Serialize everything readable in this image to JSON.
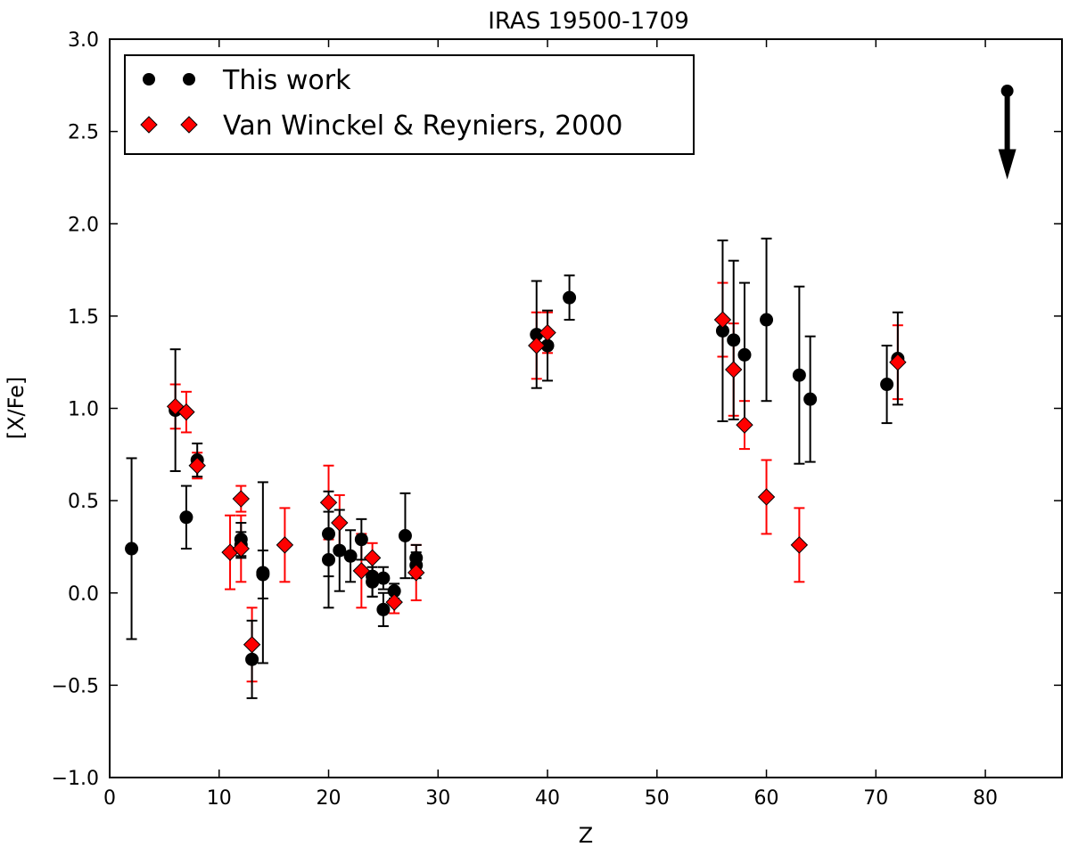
{
  "chart_data": {
    "type": "scatter",
    "title": "IRAS 19500-1709",
    "xlabel": "Z",
    "ylabel": "[X/Fe]",
    "xlim": [
      0,
      87
    ],
    "ylim": [
      -1.0,
      3.0
    ],
    "xticks": [
      0,
      10,
      20,
      30,
      40,
      50,
      60,
      70,
      80
    ],
    "xtick_labels": [
      "0",
      "10",
      "20",
      "30",
      "40",
      "50",
      "60",
      "70",
      "80"
    ],
    "yticks": [
      -1.0,
      -0.5,
      0.0,
      0.5,
      1.0,
      1.5,
      2.0,
      2.5,
      3.0
    ],
    "ytick_labels": [
      "−1.0",
      "−0.5",
      "0.0",
      "0.5",
      "1.0",
      "1.5",
      "2.0",
      "2.5",
      "3.0"
    ],
    "grid": false,
    "legend_position": "top-left",
    "series": [
      {
        "name": "This work",
        "marker": "circle",
        "color": "#000000",
        "points": [
          {
            "x": 2,
            "y": 0.24,
            "err": 0.49
          },
          {
            "x": 6,
            "y": 0.99,
            "err": 0.33
          },
          {
            "x": 7,
            "y": 0.41,
            "err": 0.17
          },
          {
            "x": 8,
            "y": 0.72,
            "err": 0.09
          },
          {
            "x": 12,
            "y": 0.29,
            "err": 0.09
          },
          {
            "x": 12,
            "y": 0.26,
            "err": 0.07
          },
          {
            "x": 13,
            "y": -0.36,
            "err": 0.21
          },
          {
            "x": 14,
            "y": 0.11,
            "err": 0.49
          },
          {
            "x": 14,
            "y": 0.1,
            "err": 0.13
          },
          {
            "x": 20,
            "y": 0.32,
            "err": 0.23
          },
          {
            "x": 20,
            "y": 0.18,
            "err": 0.26
          },
          {
            "x": 21,
            "y": 0.23,
            "err": 0.22
          },
          {
            "x": 22,
            "y": 0.2,
            "err": 0.14
          },
          {
            "x": 23,
            "y": 0.29,
            "err": 0.11
          },
          {
            "x": 24,
            "y": 0.09,
            "err": 0.11
          },
          {
            "x": 24,
            "y": 0.06,
            "err": 0.08
          },
          {
            "x": 25,
            "y": 0.08,
            "err": 0.06
          },
          {
            "x": 25,
            "y": -0.09,
            "err": 0.09
          },
          {
            "x": 26,
            "y": 0.01,
            "err": 0.04
          },
          {
            "x": 27,
            "y": 0.31,
            "err": 0.23
          },
          {
            "x": 28,
            "y": 0.19,
            "err": 0.07
          },
          {
            "x": 28,
            "y": 0.15,
            "err": 0.07
          },
          {
            "x": 39,
            "y": 1.4,
            "err": 0.29
          },
          {
            "x": 40,
            "y": 1.34,
            "err": 0.19
          },
          {
            "x": 42,
            "y": 1.6,
            "err": 0.12
          },
          {
            "x": 56,
            "y": 1.42,
            "err": 0.49
          },
          {
            "x": 57,
            "y": 1.37,
            "err": 0.43
          },
          {
            "x": 58,
            "y": 1.29,
            "err": 0.39
          },
          {
            "x": 60,
            "y": 1.48,
            "err": 0.44
          },
          {
            "x": 63,
            "y": 1.18,
            "err": 0.48
          },
          {
            "x": 64,
            "y": 1.05,
            "err": 0.34
          },
          {
            "x": 71,
            "y": 1.13,
            "err": 0.21
          },
          {
            "x": 72,
            "y": 1.27,
            "err": 0.25
          }
        ],
        "upper_limit": {
          "x": 82,
          "y": 2.72,
          "y_end": 2.24
        }
      },
      {
        "name": "Van Winckel & Reyniers, 2000",
        "marker": "diamond",
        "color": "#ff0000",
        "points": [
          {
            "x": 6,
            "y": 1.01,
            "err": 0.12
          },
          {
            "x": 7,
            "y": 0.98,
            "err": 0.11
          },
          {
            "x": 8,
            "y": 0.69,
            "err": 0.07
          },
          {
            "x": 11,
            "y": 0.22,
            "err": 0.2
          },
          {
            "x": 12,
            "y": 0.51,
            "err": 0.07
          },
          {
            "x": 12,
            "y": 0.24,
            "err": 0.18
          },
          {
            "x": 13,
            "y": -0.28,
            "err": 0.2
          },
          {
            "x": 16,
            "y": 0.26,
            "err": 0.2
          },
          {
            "x": 20,
            "y": 0.49,
            "err": 0.2
          },
          {
            "x": 21,
            "y": 0.38,
            "err": 0.15
          },
          {
            "x": 23,
            "y": 0.12,
            "err": 0.2
          },
          {
            "x": 24,
            "y": 0.19,
            "err": 0.08
          },
          {
            "x": 26,
            "y": -0.05,
            "err": 0.06
          },
          {
            "x": 28,
            "y": 0.11,
            "err": 0.15
          },
          {
            "x": 39,
            "y": 1.34,
            "err": 0.18
          },
          {
            "x": 40,
            "y": 1.41,
            "err": 0.11
          },
          {
            "x": 56,
            "y": 1.48,
            "err": 0.2
          },
          {
            "x": 57,
            "y": 1.21,
            "err": 0.25
          },
          {
            "x": 58,
            "y": 0.91,
            "err": 0.13
          },
          {
            "x": 60,
            "y": 0.52,
            "err": 0.2
          },
          {
            "x": 63,
            "y": 0.26,
            "err": 0.2
          },
          {
            "x": 72,
            "y": 1.25,
            "err": 0.2
          }
        ]
      }
    ]
  }
}
